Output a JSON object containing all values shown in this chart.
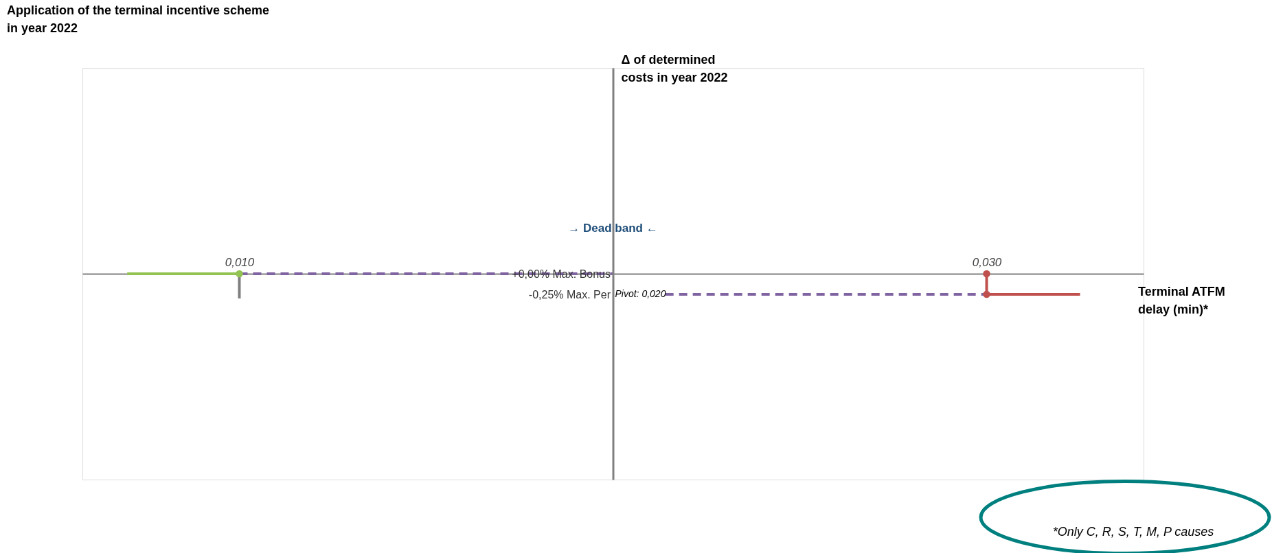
{
  "chart_data": {
    "type": "line",
    "title": "Application of the terminal incentive scheme in year 2022",
    "xlabel": "Terminal ATFM delay (min)*",
    "ylabel": "Δ of determined costs in year 2022",
    "xlim": [
      0.0058,
      0.0342
    ],
    "ylim": [
      -2.5,
      2.5
    ],
    "grid": false,
    "xticks": [
      {
        "value": 0.01,
        "label": "0,010"
      },
      {
        "value": 0.03,
        "label": "0,030"
      }
    ],
    "yticks": [
      {
        "value": 0,
        "label": "+0,00% Max. Bonus"
      },
      {
        "value": -0.25,
        "label": "-0,25% Max. Per"
      }
    ],
    "series": [
      {
        "type": "line",
        "color": "#92c353",
        "x": [
          0.007,
          0.01
        ],
        "values": [
          0,
          0
        ],
        "line_style": "solid"
      },
      {
        "type": "line",
        "color": "#7f7f7f",
        "x": [
          0.01,
          0.01
        ],
        "values": [
          0,
          -0.3
        ],
        "line_style": "solid"
      },
      {
        "type": "line",
        "color": "#8064a2",
        "x": [
          0.01,
          0.02
        ],
        "values": [
          0,
          0
        ],
        "line_style": "dashed"
      },
      {
        "type": "line",
        "color": "#8064a2",
        "x": [
          0.0214,
          0.03
        ],
        "values": [
          -0.25,
          -0.25
        ],
        "line_style": "dashed"
      },
      {
        "type": "line",
        "color": "#c0504d",
        "x": [
          0.03,
          0.03,
          0.0325
        ],
        "values": [
          0,
          -0.25,
          -0.25
        ],
        "line_style": "solid"
      },
      {
        "type": "scatter",
        "color": "#92c353",
        "x": [
          0.01
        ],
        "values": [
          0
        ],
        "marker": "circle"
      },
      {
        "type": "scatter",
        "color": "#c0504d",
        "x": [
          0.03,
          0.03
        ],
        "values": [
          0,
          -0.25
        ],
        "marker": "circle"
      }
    ],
    "ref_lines": [
      {
        "axis": "y",
        "value": 0,
        "color": "#808080"
      },
      {
        "axis": "x",
        "value": 0.02,
        "color": "#808080"
      }
    ],
    "annotations": [
      {
        "text": "Pivot: 0,020",
        "x": 0.02,
        "y": -0.25
      },
      {
        "text": "→ Dead band ←",
        "x": 0.02,
        "y": 0.55
      },
      "*Only C, R, S, T, M, P causes"
    ]
  }
}
